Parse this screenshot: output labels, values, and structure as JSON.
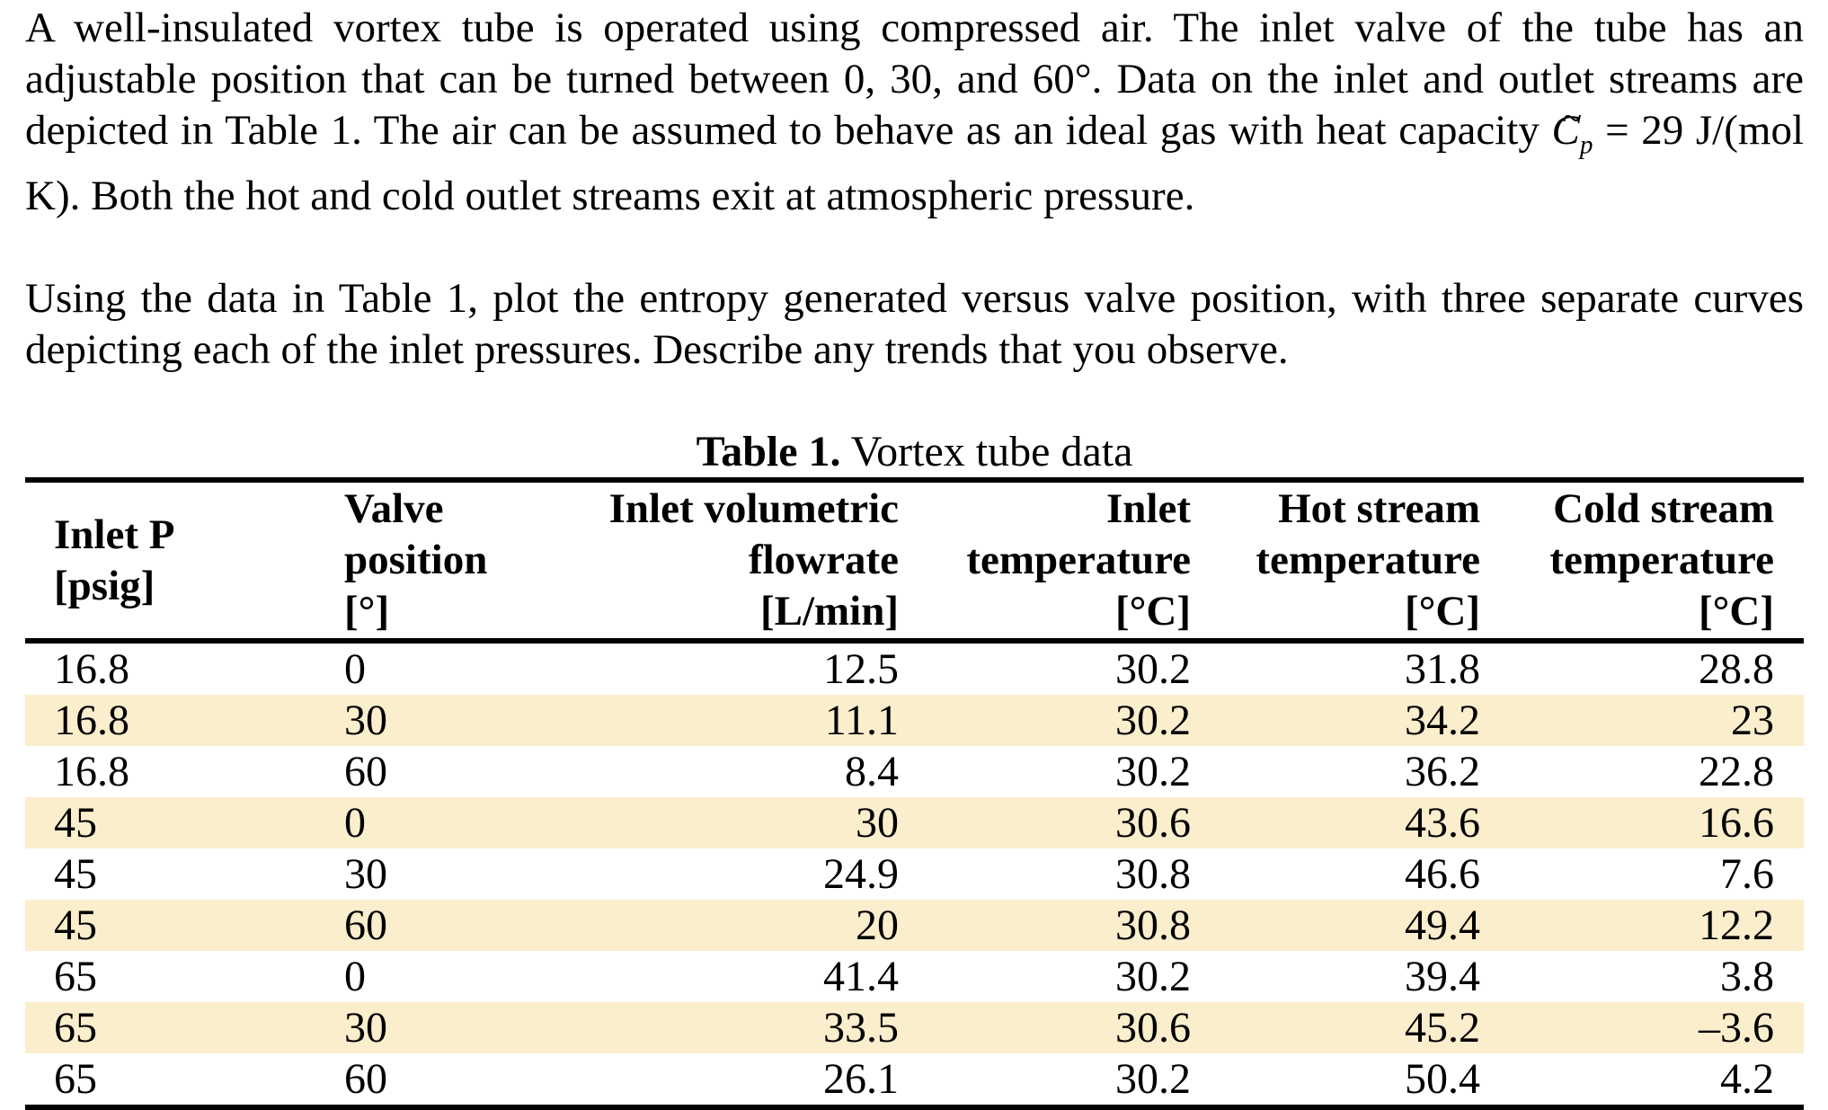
{
  "page": {
    "background": "#ffffff",
    "text_color": "#000000"
  },
  "paragraph1": {
    "part1": "A well-insulated vortex tube is operated using compressed air. The inlet valve of the tube has an adjustable position that can be turned between 0, 30, and 60°. Data on the inlet and outlet streams are depicted in Table 1. The air can be assumed to behave as an ideal gas with heat capacity ",
    "math_base": "C",
    "math_tilde": "~",
    "math_subscript": "p",
    "part2": " = 29 J/(mol K). Both the hot and cold outlet streams exit at atmospheric pressure."
  },
  "paragraph2": {
    "text": "Using the data in Table 1, plot the entropy generated versus valve position, with three separate curves depicting each of the inlet pressures. Describe any trends that you observe."
  },
  "table": {
    "caption_label": "Table 1.",
    "caption_text": " Vortex tube data",
    "stripe_color": "#fbeecd",
    "columns": [
      {
        "id": "inlet-pressure",
        "lines": [
          "Inlet P",
          "[psig]"
        ],
        "align": "left"
      },
      {
        "id": "valve-position",
        "lines": [
          "Valve",
          "position",
          "[°]"
        ],
        "align": "left"
      },
      {
        "id": "inlet-volumetric-flowrate",
        "lines": [
          "Inlet volumetric",
          "flowrate",
          "[L/min]"
        ],
        "align": "right"
      },
      {
        "id": "inlet-temperature",
        "lines": [
          "Inlet",
          "temperature",
          "[°C]"
        ],
        "align": "right"
      },
      {
        "id": "hot-stream-temperature",
        "lines": [
          "Hot stream",
          "temperature",
          "[°C]"
        ],
        "align": "right"
      },
      {
        "id": "cold-stream-temperature",
        "lines": [
          "Cold stream",
          "temperature",
          "[°C]"
        ],
        "align": "right"
      }
    ],
    "rows": [
      {
        "highlighted": false,
        "cells": [
          "16.8",
          "0",
          "12.5",
          "30.2",
          "31.8",
          "28.8"
        ]
      },
      {
        "highlighted": true,
        "cells": [
          "16.8",
          "30",
          "11.1",
          "30.2",
          "34.2",
          "23"
        ]
      },
      {
        "highlighted": false,
        "cells": [
          "16.8",
          "60",
          "8.4",
          "30.2",
          "36.2",
          "22.8"
        ]
      },
      {
        "highlighted": true,
        "cells": [
          "45",
          "0",
          "30",
          "30.6",
          "43.6",
          "16.6"
        ]
      },
      {
        "highlighted": false,
        "cells": [
          "45",
          "30",
          "24.9",
          "30.8",
          "46.6",
          "7.6"
        ]
      },
      {
        "highlighted": true,
        "cells": [
          "45",
          "60",
          "20",
          "30.8",
          "49.4",
          "12.2"
        ]
      },
      {
        "highlighted": false,
        "cells": [
          "65",
          "0",
          "41.4",
          "30.2",
          "39.4",
          "3.8"
        ]
      },
      {
        "highlighted": true,
        "cells": [
          "65",
          "30",
          "33.5",
          "30.6",
          "45.2",
          "–3.6"
        ]
      },
      {
        "highlighted": false,
        "cells": [
          "65",
          "60",
          "26.1",
          "30.2",
          "50.4",
          "4.2"
        ]
      }
    ]
  }
}
